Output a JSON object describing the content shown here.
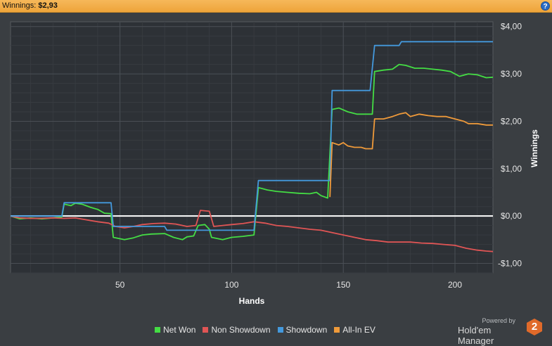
{
  "header": {
    "label": "Winnings:",
    "value": "$2,93",
    "help": "?"
  },
  "branding": {
    "powered": "Powered by",
    "name": "Hold'em Manager",
    "logo": "2"
  },
  "chart_data": {
    "type": "line",
    "title": "",
    "xlabel": "Hands",
    "ylabel": "Winnings",
    "xlim": [
      1,
      217
    ],
    "ylim": [
      -1.2,
      4.1
    ],
    "x_ticks": [
      {
        "v": 50,
        "label": "50"
      },
      {
        "v": 100,
        "label": "100"
      },
      {
        "v": 150,
        "label": "150"
      },
      {
        "v": 200,
        "label": "200"
      }
    ],
    "y_ticks": [
      {
        "v": 4,
        "label": "$4,00"
      },
      {
        "v": 3,
        "label": "$3,00"
      },
      {
        "v": 2,
        "label": "$2,00"
      },
      {
        "v": 1,
        "label": "$1,00"
      },
      {
        "v": 0,
        "label": "$0,00"
      },
      {
        "v": -1,
        "label": "-$1,00"
      }
    ],
    "grid": true,
    "legend_position": "bottom",
    "series": [
      {
        "name": "Net Won",
        "color": "#44dd44",
        "points": [
          [
            1,
            0
          ],
          [
            5,
            -0.06
          ],
          [
            10,
            -0.04
          ],
          [
            15,
            -0.06
          ],
          [
            20,
            -0.04
          ],
          [
            24,
            -0.02
          ],
          [
            25,
            0.25
          ],
          [
            28,
            0.22
          ],
          [
            30,
            0.27
          ],
          [
            33,
            0.25
          ],
          [
            37,
            0.18
          ],
          [
            40,
            0.14
          ],
          [
            43,
            0.06
          ],
          [
            46,
            0.05
          ],
          [
            47,
            -0.45
          ],
          [
            52,
            -0.5
          ],
          [
            56,
            -0.46
          ],
          [
            60,
            -0.4
          ],
          [
            64,
            -0.38
          ],
          [
            70,
            -0.37
          ],
          [
            74,
            -0.45
          ],
          [
            78,
            -0.5
          ],
          [
            80,
            -0.44
          ],
          [
            83,
            -0.42
          ],
          [
            85,
            -0.2
          ],
          [
            88,
            -0.18
          ],
          [
            90,
            -0.28
          ],
          [
            91,
            -0.45
          ],
          [
            96,
            -0.5
          ],
          [
            100,
            -0.45
          ],
          [
            105,
            -0.43
          ],
          [
            110,
            -0.4
          ],
          [
            112,
            0.6
          ],
          [
            116,
            0.55
          ],
          [
            120,
            0.52
          ],
          [
            125,
            0.5
          ],
          [
            130,
            0.48
          ],
          [
            135,
            0.47
          ],
          [
            138,
            0.5
          ],
          [
            140,
            0.43
          ],
          [
            143,
            0.38
          ],
          [
            145,
            2.25
          ],
          [
            148,
            2.28
          ],
          [
            152,
            2.2
          ],
          [
            156,
            2.15
          ],
          [
            160,
            2.15
          ],
          [
            163,
            2.15
          ],
          [
            164,
            3.05
          ],
          [
            168,
            3.08
          ],
          [
            172,
            3.1
          ],
          [
            175,
            3.2
          ],
          [
            178,
            3.18
          ],
          [
            182,
            3.12
          ],
          [
            186,
            3.12
          ],
          [
            190,
            3.1
          ],
          [
            194,
            3.08
          ],
          [
            198,
            3.05
          ],
          [
            202,
            2.95
          ],
          [
            206,
            3.0
          ],
          [
            210,
            2.98
          ],
          [
            214,
            2.92
          ],
          [
            217,
            2.93
          ]
        ]
      },
      {
        "name": "Non Showdown",
        "color": "#e05555",
        "points": [
          [
            1,
            0
          ],
          [
            5,
            -0.04
          ],
          [
            10,
            -0.05
          ],
          [
            15,
            -0.05
          ],
          [
            20,
            -0.04
          ],
          [
            25,
            -0.05
          ],
          [
            30,
            -0.04
          ],
          [
            35,
            -0.08
          ],
          [
            40,
            -0.12
          ],
          [
            45,
            -0.15
          ],
          [
            48,
            -0.22
          ],
          [
            52,
            -0.25
          ],
          [
            56,
            -0.22
          ],
          [
            60,
            -0.18
          ],
          [
            65,
            -0.16
          ],
          [
            70,
            -0.15
          ],
          [
            75,
            -0.17
          ],
          [
            80,
            -0.22
          ],
          [
            84,
            -0.2
          ],
          [
            86,
            0.12
          ],
          [
            90,
            0.1
          ],
          [
            92,
            -0.22
          ],
          [
            96,
            -0.2
          ],
          [
            100,
            -0.18
          ],
          [
            105,
            -0.16
          ],
          [
            110,
            -0.12
          ],
          [
            115,
            -0.15
          ],
          [
            120,
            -0.2
          ],
          [
            125,
            -0.22
          ],
          [
            130,
            -0.25
          ],
          [
            135,
            -0.28
          ],
          [
            140,
            -0.3
          ],
          [
            145,
            -0.35
          ],
          [
            150,
            -0.4
          ],
          [
            155,
            -0.45
          ],
          [
            160,
            -0.5
          ],
          [
            165,
            -0.52
          ],
          [
            170,
            -0.55
          ],
          [
            175,
            -0.55
          ],
          [
            180,
            -0.55
          ],
          [
            185,
            -0.57
          ],
          [
            190,
            -0.58
          ],
          [
            195,
            -0.6
          ],
          [
            200,
            -0.62
          ],
          [
            205,
            -0.68
          ],
          [
            210,
            -0.72
          ],
          [
            214,
            -0.74
          ],
          [
            217,
            -0.75
          ]
        ]
      },
      {
        "name": "Showdown",
        "color": "#4499dd",
        "points": [
          [
            1,
            0
          ],
          [
            24,
            0
          ],
          [
            25,
            0.28
          ],
          [
            46,
            0.28
          ],
          [
            47,
            -0.22
          ],
          [
            70,
            -0.22
          ],
          [
            71,
            -0.3
          ],
          [
            110,
            -0.3
          ],
          [
            112,
            0.75
          ],
          [
            144,
            0.75
          ],
          [
            145,
            2.65
          ],
          [
            162,
            2.65
          ],
          [
            164,
            3.6
          ],
          [
            175,
            3.6
          ],
          [
            176,
            3.68
          ],
          [
            217,
            3.68
          ]
        ]
      },
      {
        "name": "All-In EV",
        "color": "#ef9a3a",
        "points": [
          [
            144,
            0.4
          ],
          [
            145,
            1.55
          ],
          [
            148,
            1.5
          ],
          [
            150,
            1.55
          ],
          [
            152,
            1.48
          ],
          [
            155,
            1.45
          ],
          [
            158,
            1.45
          ],
          [
            160,
            1.42
          ],
          [
            163,
            1.42
          ],
          [
            164,
            2.05
          ],
          [
            168,
            2.05
          ],
          [
            172,
            2.1
          ],
          [
            175,
            2.15
          ],
          [
            178,
            2.18
          ],
          [
            180,
            2.1
          ],
          [
            184,
            2.15
          ],
          [
            188,
            2.12
          ],
          [
            192,
            2.1
          ],
          [
            196,
            2.1
          ],
          [
            200,
            2.05
          ],
          [
            204,
            2.0
          ],
          [
            206,
            1.95
          ],
          [
            210,
            1.95
          ],
          [
            214,
            1.92
          ],
          [
            217,
            1.92
          ]
        ]
      }
    ]
  }
}
